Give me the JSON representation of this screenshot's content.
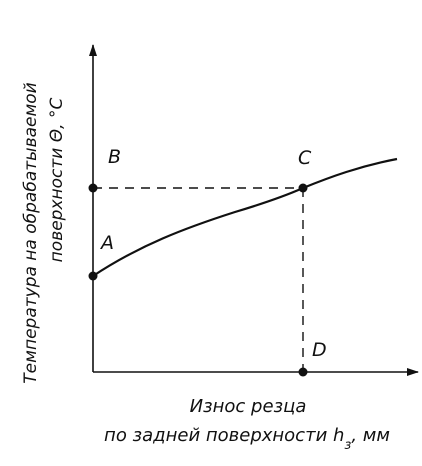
{
  "diagram": {
    "y_axis_label_line1": "Температура на обрабатываемой",
    "y_axis_label_line2": "поверхности Θ, °С",
    "x_axis_label_line1": "Износ резца",
    "x_axis_label_line2_main": "по задней поверхности h",
    "x_axis_label_line2_sub": "з",
    "x_axis_label_line2_unit": ", мм",
    "points": {
      "A": "A",
      "B": "B",
      "C": "C",
      "D": "D"
    },
    "colors": {
      "ink": "#111111",
      "background": "#ffffff"
    }
  }
}
